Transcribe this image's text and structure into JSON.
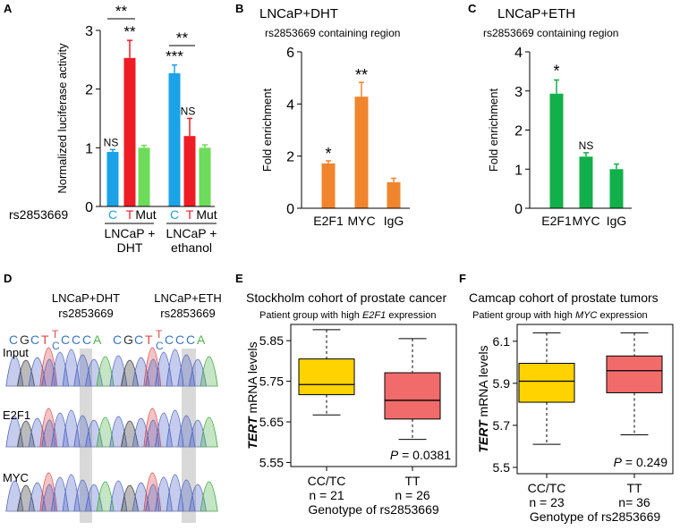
{
  "figure": {
    "panel_letters": {
      "A": "A",
      "B": "B",
      "C": "C",
      "D": "D",
      "E": "E",
      "F": "F"
    },
    "colors": {
      "blue": "#1aa3e8",
      "red": "#ee1c25",
      "green": "#6ddc5a",
      "orange": "#f0852d",
      "darkgreen": "#12b04a",
      "gold": "#ffd300",
      "salmon": "#f26b6b",
      "grey_bar": "#d9d9d9"
    }
  },
  "chart_data": [
    {
      "panel": "A",
      "type": "bar",
      "ylabel": "Normalized luciferase activity",
      "ylim": [
        0,
        3
      ],
      "yticks": [
        "0",
        "1",
        "2",
        "3"
      ],
      "snp_label": "rs2853669",
      "categories": [
        "C",
        "T",
        "Mut",
        "C",
        "T",
        "Mut"
      ],
      "groups": [
        "LNCaP +\nDHT",
        "LNCaP +\nethanol"
      ],
      "values": [
        0.93,
        2.53,
        1.0,
        2.27,
        1.2,
        1.0
      ],
      "errors": [
        0.04,
        0.3,
        0.04,
        0.14,
        0.3,
        0.05
      ],
      "bar_colors": [
        "#1aa3e8",
        "#ee1c25",
        "#6ddc5a",
        "#1aa3e8",
        "#ee1c25",
        "#6ddc5a"
      ],
      "bar_annotations": [
        "NS",
        "**",
        "",
        "***",
        "NS",
        ""
      ],
      "brackets": [
        {
          "from": 0,
          "to": 1,
          "label": "**"
        },
        {
          "from": 3,
          "to": 4,
          "label": "**"
        }
      ]
    },
    {
      "panel": "B",
      "type": "bar",
      "title": "LNCaP+DHT",
      "subtitle": "rs2853669 containing region",
      "ylabel": "Fold enrichment",
      "ylim": [
        0,
        6
      ],
      "yticks": [
        "0",
        "2",
        "4",
        "6"
      ],
      "categories": [
        "E2F1",
        "MYC",
        "IgG"
      ],
      "values": [
        1.72,
        4.28,
        1.0
      ],
      "errors": [
        0.1,
        0.55,
        0.15
      ],
      "annotations": [
        "*",
        "**",
        ""
      ],
      "color": "#f0852d"
    },
    {
      "panel": "C",
      "type": "bar",
      "title": "LNCaP+ETH",
      "subtitle": "rs2853669 containing region",
      "ylabel": "Fold enrichment",
      "ylim": [
        0,
        4
      ],
      "yticks": [
        "0",
        "1",
        "2",
        "3",
        "4"
      ],
      "categories": [
        "E2F1",
        "MYC",
        "IgG"
      ],
      "values": [
        2.93,
        1.32,
        1.0
      ],
      "errors": [
        0.35,
        0.1,
        0.13
      ],
      "annotations": [
        "*",
        "NS",
        ""
      ],
      "color": "#12b04a"
    },
    {
      "panel": "E",
      "type": "box",
      "title": "Stockholm cohort of prostate cancer",
      "subtitle_pre": "Patient group with high ",
      "subtitle_gene": "E2F1",
      "subtitle_post": " expression",
      "ylabel_gene": "TERT",
      "ylabel_rest": " mRNA levels",
      "ylim": [
        5.54,
        5.89
      ],
      "yticks": [
        5.55,
        5.65,
        5.75,
        5.85
      ],
      "yticklabels": [
        "5.55",
        "5.65",
        "5.75",
        "5.85"
      ],
      "xlabel": "Genotype of rs2853669",
      "categories": [
        "CC/TC",
        "TT"
      ],
      "n_labels": [
        "n = 21",
        "n = 26"
      ],
      "boxes": [
        {
          "whisker_low": 5.667,
          "q1": 5.717,
          "median": 5.742,
          "q3": 5.805,
          "whisker_high": 5.877
        },
        {
          "whisker_low": 5.607,
          "q1": 5.657,
          "median": 5.703,
          "q3": 5.771,
          "whisker_high": 5.855
        }
      ],
      "box_colors": [
        "#ffd300",
        "#f26b6b"
      ],
      "p_prefix": "P",
      "p_value": " = 0.0381"
    },
    {
      "panel": "F",
      "type": "box",
      "title": "Camcap cohort of prostate tumors",
      "subtitle_pre": "Patient group with high ",
      "subtitle_gene": "MYC",
      "subtitle_post": " expression",
      "ylabel_gene": "TERT",
      "ylabel_rest": " mRNA levels",
      "ylim": [
        5.47,
        6.18
      ],
      "yticks": [
        5.5,
        5.7,
        5.9,
        6.1
      ],
      "yticklabels": [
        "5.5",
        "5.7",
        "5.9",
        "6.1"
      ],
      "xlabel": "Genotype of rs2853669",
      "categories": [
        "CC/TC",
        "TT"
      ],
      "n_labels": [
        "n = 23",
        "n= 36"
      ],
      "boxes": [
        {
          "whisker_low": 5.61,
          "q1": 5.81,
          "median": 5.91,
          "q3": 5.995,
          "whisker_high": 6.14
        },
        {
          "whisker_low": 5.655,
          "q1": 5.855,
          "median": 5.96,
          "q3": 6.03,
          "whisker_high": 6.14
        }
      ],
      "box_colors": [
        "#ffd300",
        "#f26b6b"
      ],
      "p_prefix": "P",
      "p_value": " = 0.249"
    }
  ],
  "panel_d": {
    "column_titles": [
      [
        "LNCaP+DHT",
        "rs2853669"
      ],
      [
        "LNCaP+ETH",
        "rs2853669"
      ]
    ],
    "sequence_left": [
      "C",
      "G",
      "C",
      "T"
    ],
    "sequence_right": [
      "C",
      "C",
      "C",
      "A"
    ],
    "snp_top": "T",
    "snp_bottom": "C",
    "row_labels": [
      "Input",
      "E2F1",
      "MYC"
    ]
  }
}
